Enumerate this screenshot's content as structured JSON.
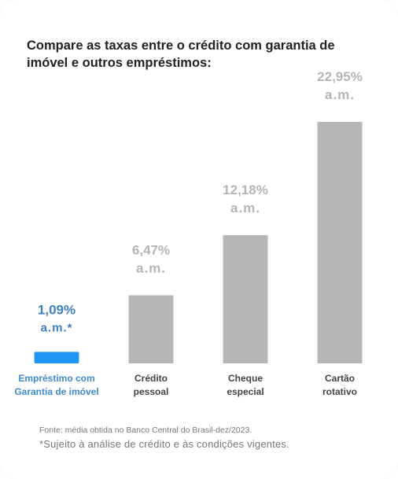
{
  "title": "Compare as taxas entre o crédito com garantia de imóvel e outros empréstimos:",
  "colors": {
    "highlight": "#2196f3",
    "highlight_label": "#3f7fbf",
    "bar": "#b5b5b5",
    "value_label": "#b5b5b5",
    "category_label": "#444444",
    "highlight_category": "#3f8ad0"
  },
  "chart_data": {
    "type": "bar",
    "categories": [
      [
        "Empréstimo com",
        "Garantia de imóvel"
      ],
      [
        "Crédito",
        "pessoal"
      ],
      [
        "Cheque",
        "especial"
      ],
      [
        "Cartão",
        "rotativo"
      ]
    ],
    "values": [
      1.09,
      6.47,
      12.18,
      22.95
    ],
    "value_labels": [
      [
        "1,09%",
        "a.m.*"
      ],
      [
        "6,47%",
        "a.m."
      ],
      [
        "12,18%",
        "a.m."
      ],
      [
        "22,95%",
        "a.m."
      ]
    ],
    "highlight_index": 0,
    "unit": "% a.m.",
    "ylim": [
      0,
      22.95
    ]
  },
  "footnotes": {
    "source": "Fonte: média obtida no Banco Central do Brasil-dez/2023.",
    "note": "*Sujeito à análise de crédito e às condições vigentes."
  }
}
